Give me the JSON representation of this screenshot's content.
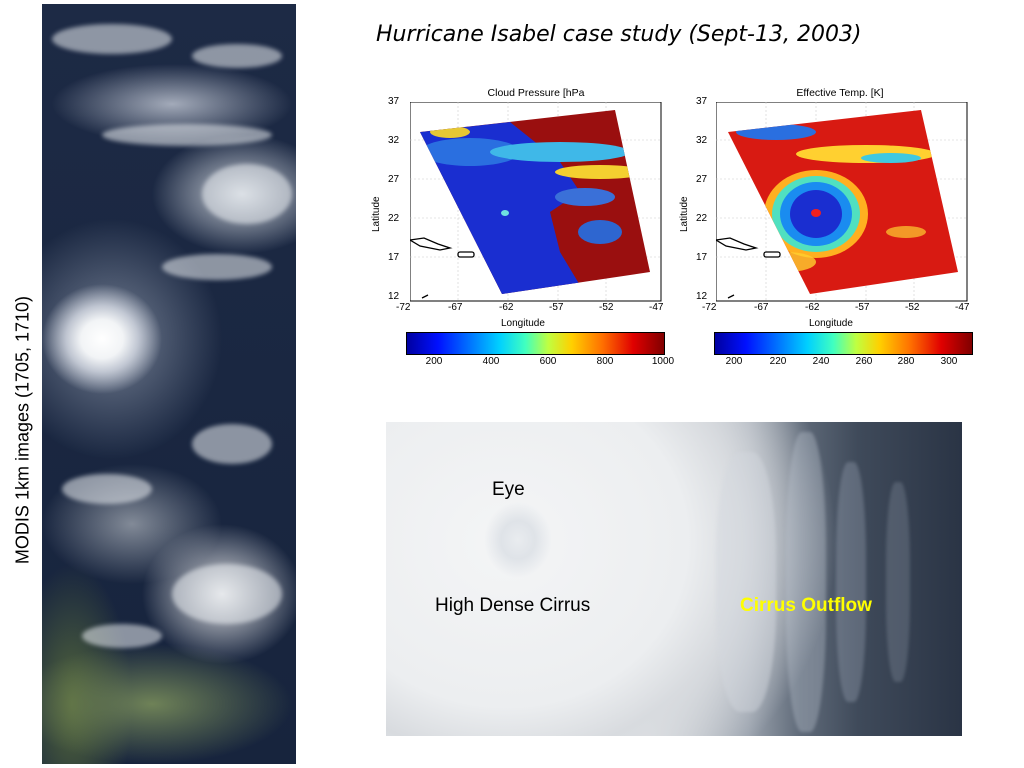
{
  "title": "Hurricane Isabel case study (Sept-13, 2003)",
  "left_label": "MODIS 1km images (1705, 1710)",
  "colors": {
    "title_text": "#000000",
    "outflow_label": "#ffff00",
    "background": "#ffffff"
  },
  "panels": [
    {
      "title": "Cloud Pressure [hPa",
      "xlabel": "Longitude",
      "ylabel": "Latitude",
      "x_ticks": [
        "-72",
        "-67",
        "-62",
        "-57",
        "-52",
        "-47"
      ],
      "y_ticks": [
        "37",
        "32",
        "27",
        "22",
        "17",
        "12"
      ],
      "colorbar_ticks": [
        "200",
        "400",
        "600",
        "800",
        "1000"
      ]
    },
    {
      "title": "Effective Temp. [K]",
      "xlabel": "Longitude",
      "ylabel": "Latitude",
      "x_ticks": [
        "-72",
        "-67",
        "-62",
        "-57",
        "-52",
        "-47"
      ],
      "y_ticks": [
        "37",
        "32",
        "27",
        "22",
        "17",
        "12"
      ],
      "colorbar_ticks": [
        "200",
        "220",
        "240",
        "260",
        "280",
        "300"
      ]
    }
  ],
  "zoom": {
    "eye_label": "Eye",
    "cirrus_label": "High Dense Cirrus",
    "outflow_label": "Cirrus Outflow"
  }
}
